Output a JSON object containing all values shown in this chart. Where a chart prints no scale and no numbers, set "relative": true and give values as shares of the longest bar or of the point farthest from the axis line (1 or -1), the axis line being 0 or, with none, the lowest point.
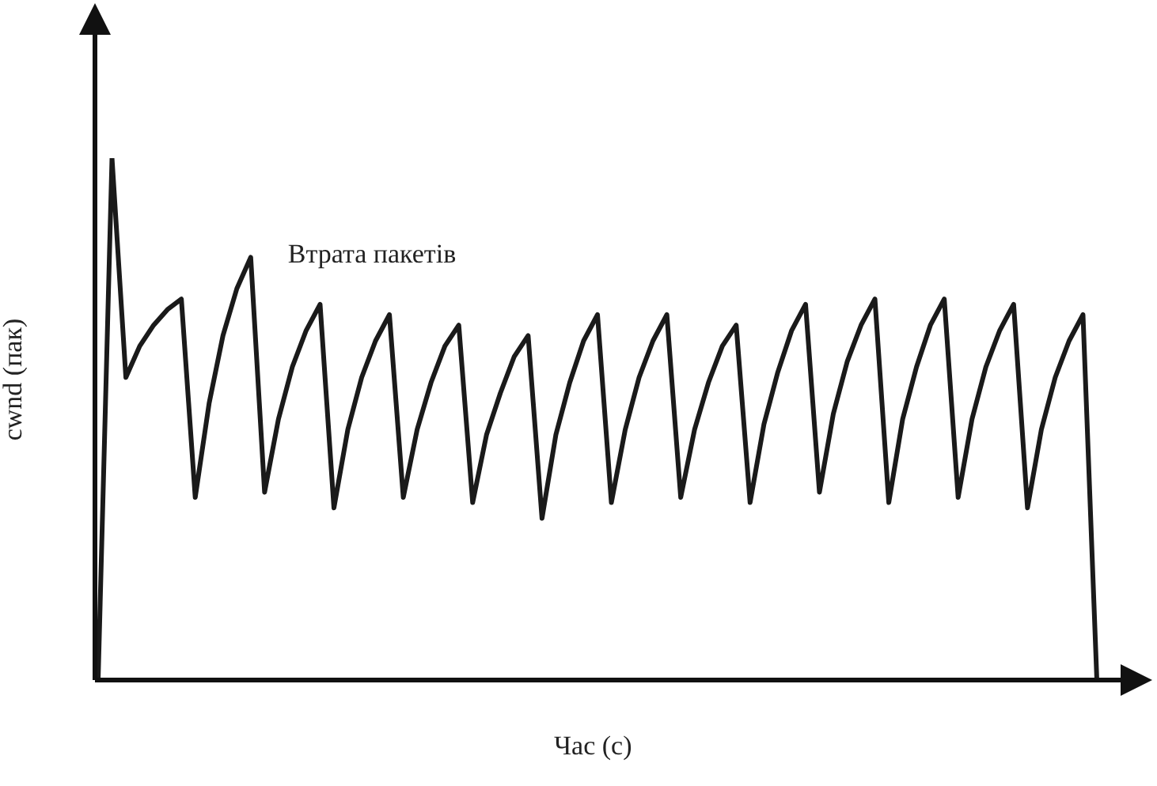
{
  "chart_data": {
    "type": "line",
    "relative": true,
    "xlabel": "Час (с)",
    "ylabel": "cwnd (пак)",
    "annotations": [
      "Втрата пакетів"
    ],
    "color": "#1a1a1a",
    "marker": "none",
    "legend": false,
    "tick_labels": false,
    "categories": [
      null,
      null,
      null,
      null,
      null,
      null,
      null,
      null,
      null,
      null,
      null,
      null,
      null,
      null,
      null,
      null,
      null,
      null,
      null,
      null,
      null,
      null,
      null,
      null,
      null,
      null,
      null,
      null,
      null,
      null,
      null,
      null,
      null,
      null,
      null,
      null,
      null,
      null,
      null,
      null,
      null,
      null,
      null,
      null,
      null,
      null,
      null,
      null,
      null,
      null,
      null,
      null,
      null,
      null,
      null,
      null,
      null,
      null,
      null,
      null,
      null,
      null,
      null,
      null,
      null,
      null,
      null,
      null,
      null,
      null,
      null,
      null,
      null
    ],
    "values": [
      0,
      1,
      0.58,
      0.64,
      0.68,
      0.71,
      0.73,
      0.35,
      0.53,
      0.66,
      0.75,
      0.81,
      0.36,
      0.5,
      0.6,
      0.67,
      0.72,
      0.33,
      0.48,
      0.58,
      0.65,
      0.7,
      0.35,
      0.48,
      0.57,
      0.64,
      0.68,
      0.34,
      0.47,
      0.55,
      0.62,
      0.66,
      0.31,
      0.47,
      0.57,
      0.65,
      0.7,
      0.34,
      0.48,
      0.58,
      0.65,
      0.7,
      0.35,
      0.48,
      0.57,
      0.64,
      0.68,
      0.34,
      0.49,
      0.59,
      0.67,
      0.72,
      0.36,
      0.51,
      0.61,
      0.68,
      0.73,
      0.34,
      0.5,
      0.6,
      0.68,
      0.73,
      0.35,
      0.5,
      0.6,
      0.67,
      0.72,
      0.33,
      0.48,
      0.58,
      0.65,
      0.7,
      0
    ]
  }
}
